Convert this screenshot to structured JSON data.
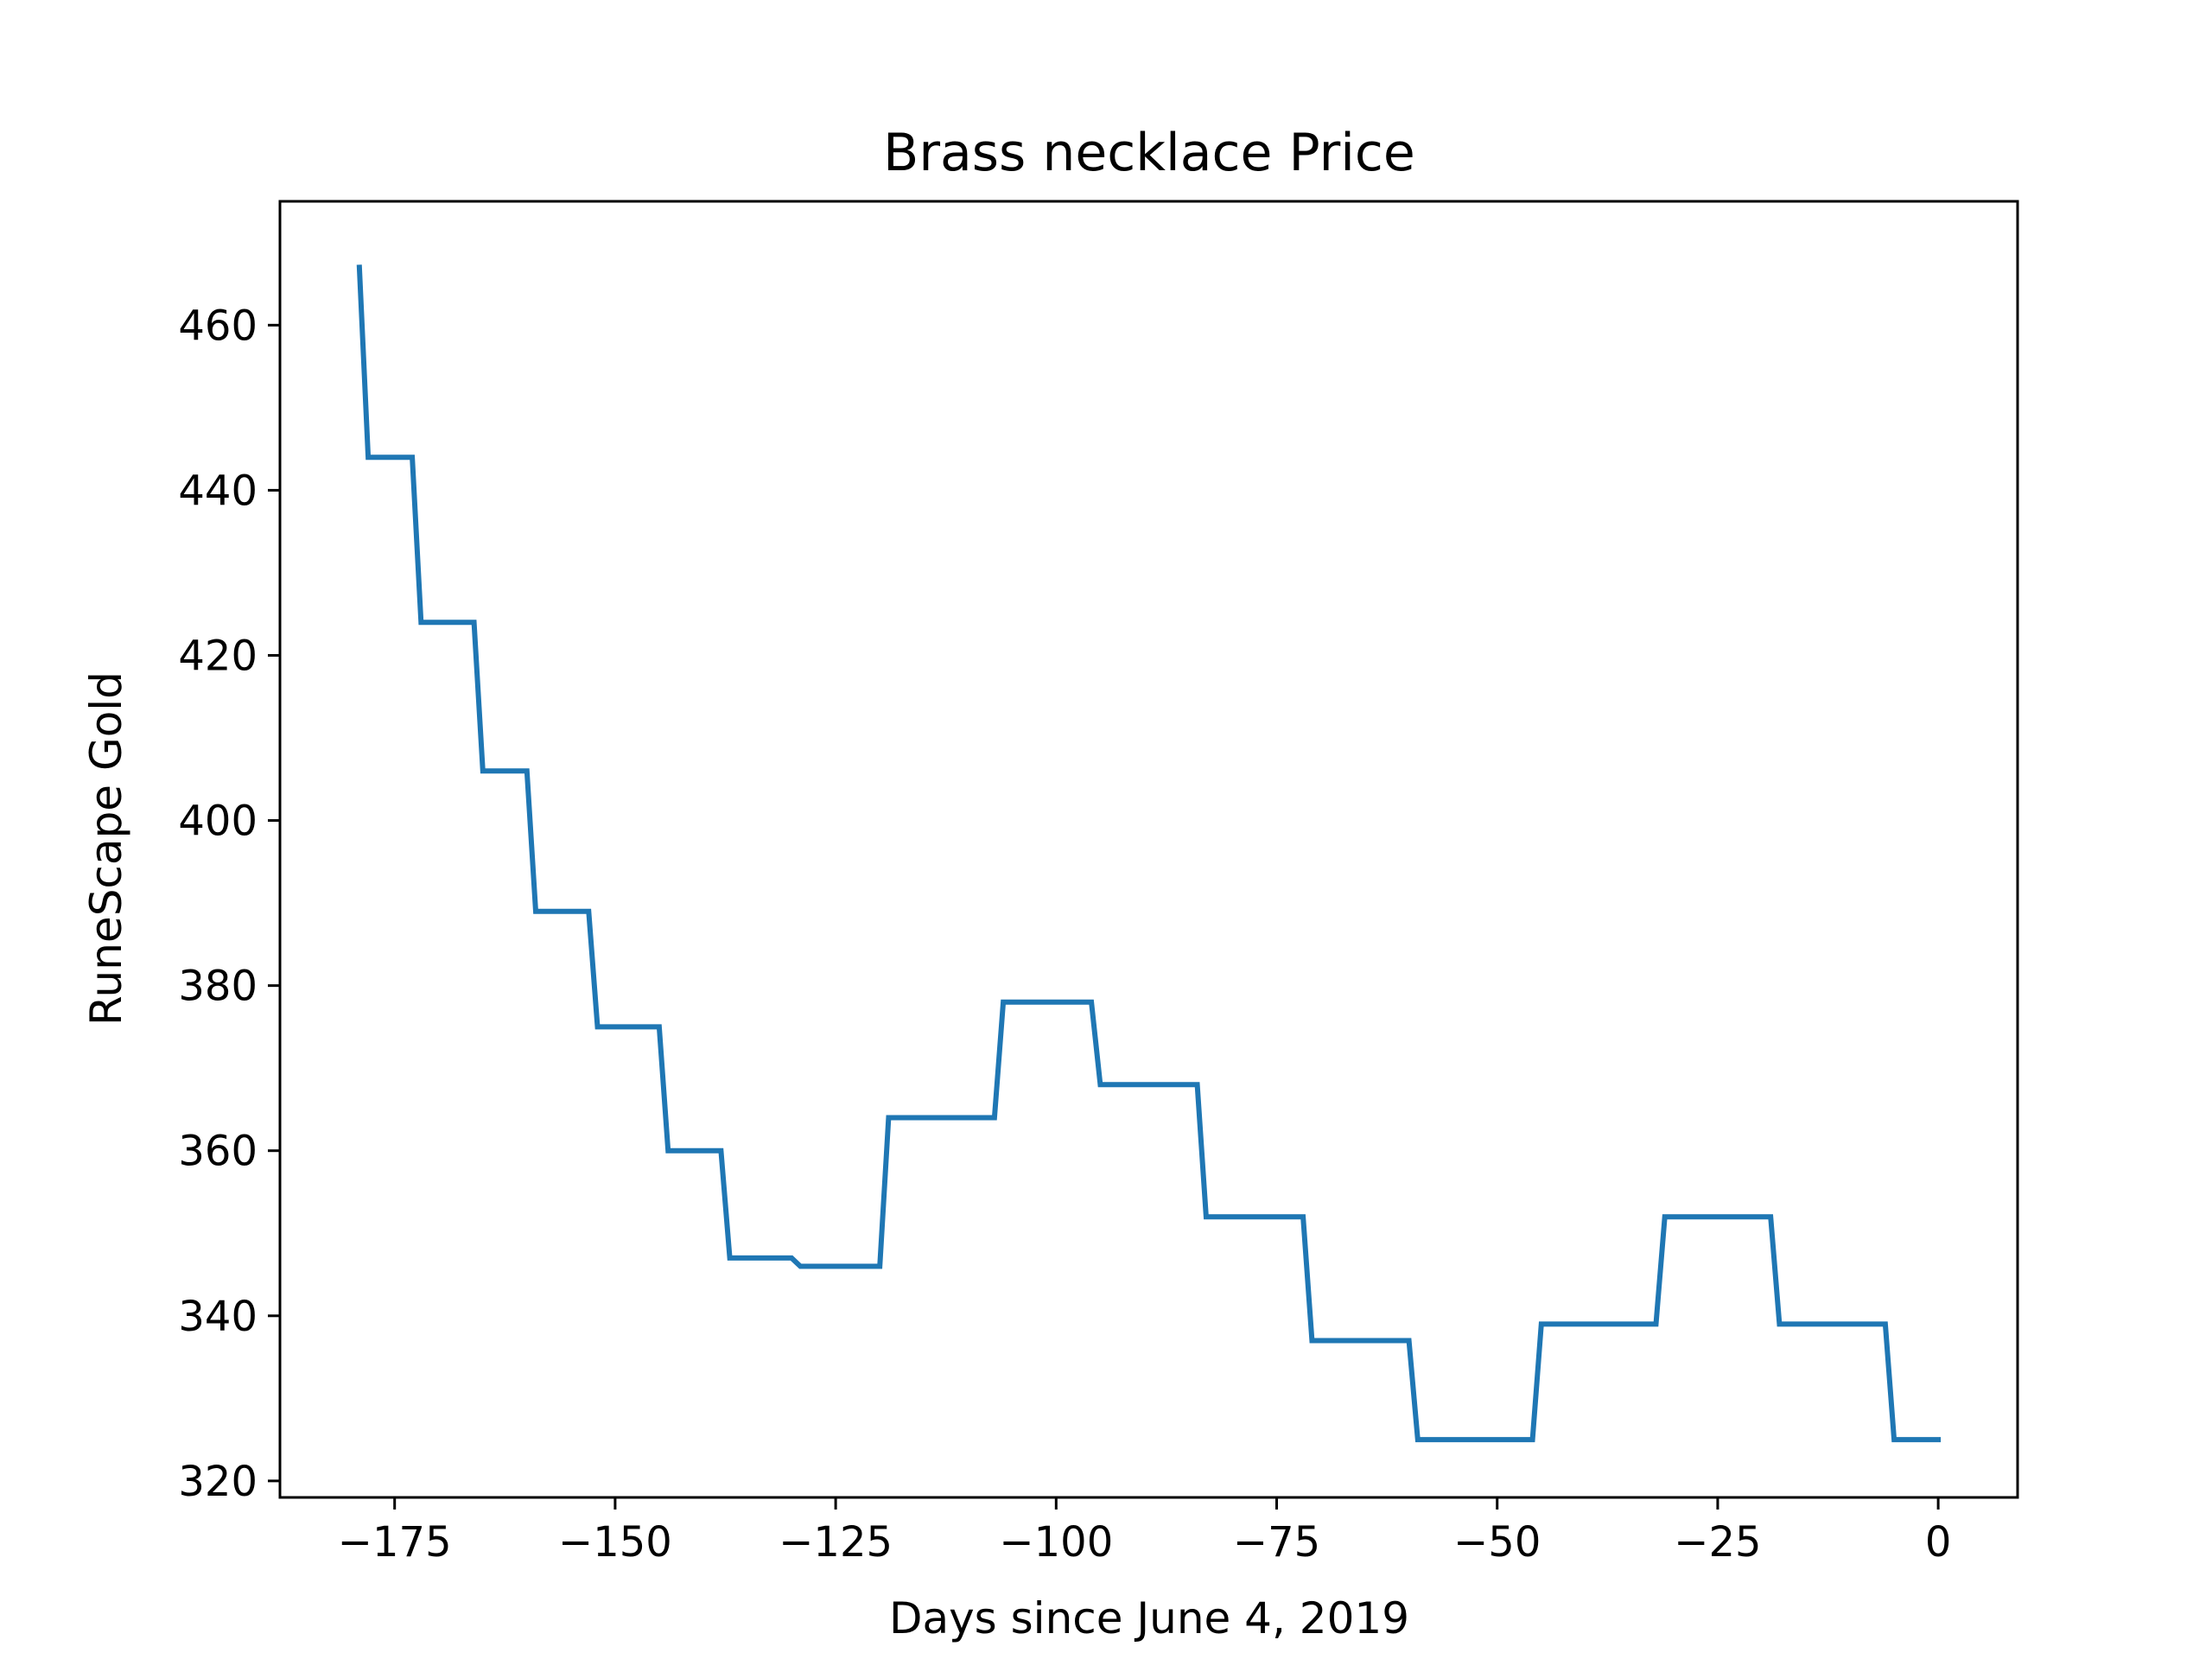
{
  "chart_data": {
    "type": "line",
    "title": "Brass necklace Price",
    "xlabel": "Days since June 4, 2019",
    "ylabel": "RuneScape Gold",
    "xlim": [
      -188,
      9
    ],
    "ylim": [
      318,
      475
    ],
    "xticks": [
      -175,
      -150,
      -125,
      -100,
      -75,
      -50,
      -25,
      0
    ],
    "xtick_labels": [
      "−175",
      "−150",
      "−125",
      "−100",
      "−75",
      "−50",
      "−25",
      "0"
    ],
    "yticks": [
      320,
      340,
      360,
      380,
      400,
      420,
      440,
      460
    ],
    "ytick_labels": [
      "320",
      "340",
      "360",
      "380",
      "400",
      "420",
      "440",
      "460"
    ],
    "grid": false,
    "series": [
      {
        "color": "#1f77b4",
        "x": [
          -179,
          -178,
          -173,
          -172,
          -166,
          -165,
          -160,
          -159,
          -153,
          -152,
          -145,
          -144,
          -138,
          -137,
          -130,
          -129,
          -120,
          -119,
          -107,
          -106,
          -96,
          -95,
          -84,
          -83,
          -72,
          -71,
          -60,
          -59,
          -46,
          -45,
          -32,
          -31,
          -19,
          -18,
          -6,
          -5,
          0
        ],
        "y": [
          467,
          444,
          444,
          424,
          424,
          406,
          406,
          389,
          389,
          375,
          375,
          360,
          360,
          347,
          347,
          346,
          346,
          364,
          364,
          378,
          378,
          368,
          368,
          352,
          352,
          337,
          337,
          325,
          325,
          339,
          339,
          352,
          352,
          339,
          339,
          325,
          325
        ]
      }
    ]
  }
}
